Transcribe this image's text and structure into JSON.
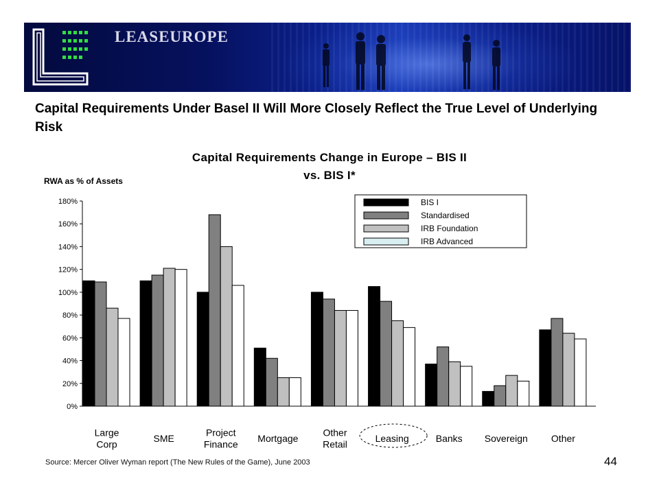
{
  "header": {
    "brand": "LEASEUROPE",
    "title": "Capital Requirements Under Basel II Will More Closely Reflect the True Level of Underlying Risk"
  },
  "chart_data": {
    "type": "bar",
    "title": "Capital Requirements Change in Europe – BIS II vs. BIS I*",
    "ylabel": "RWA as % of Assets",
    "xlabel": "",
    "ylim": [
      0,
      180
    ],
    "yticks": [
      "0%",
      "20%",
      "40%",
      "60%",
      "80%",
      "100%",
      "120%",
      "140%",
      "160%",
      "180%"
    ],
    "categories": [
      [
        "Large",
        "Corp"
      ],
      [
        "SME"
      ],
      [
        "Project",
        "Finance"
      ],
      [
        "Mortgage"
      ],
      [
        "Other",
        "Retail"
      ],
      [
        "Leasing"
      ],
      [
        "Banks"
      ],
      [
        "Sovereign"
      ],
      [
        "Other"
      ]
    ],
    "highlighted_category": "Leasing",
    "series": [
      {
        "name": "BIS I",
        "color": "#000000",
        "values": [
          110,
          110,
          100,
          51,
          100,
          105,
          37,
          13,
          67
        ]
      },
      {
        "name": "Standardised",
        "color": "#808080",
        "values": [
          109,
          115,
          168,
          42,
          94,
          92,
          52,
          18,
          77
        ]
      },
      {
        "name": "IRB Foundation",
        "color": "#c0c0c0",
        "values": [
          86,
          121,
          140,
          25,
          84,
          75,
          39,
          27,
          64
        ]
      },
      {
        "name": "IRB Advanced",
        "color": "#ffffff",
        "values": [
          77,
          120,
          106,
          25,
          84,
          69,
          35,
          22,
          59
        ]
      }
    ],
    "legend_position": "top-right",
    "grid": false
  },
  "footer": {
    "source": "Source: Mercer Oliver Wyman report (The New Rules of the Game), June 2003",
    "page_number": "44"
  }
}
